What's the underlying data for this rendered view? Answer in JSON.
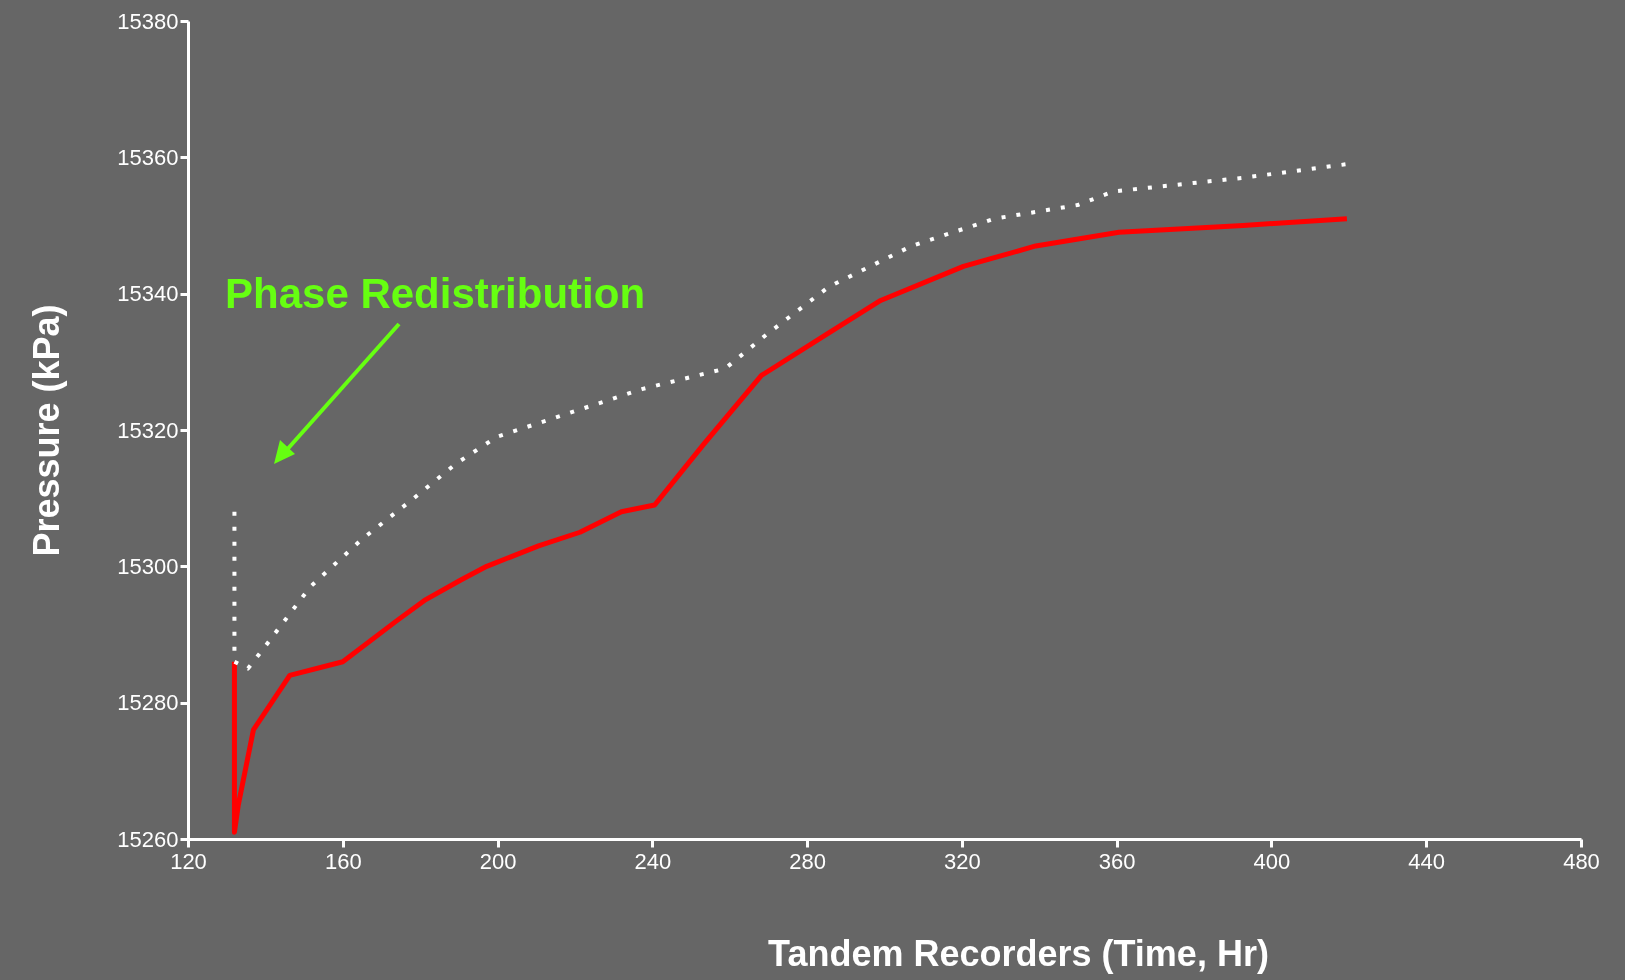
{
  "chart_data": {
    "type": "line",
    "xlabel": "Tandem Recorders (Time, Hr)",
    "ylabel": "Pressure (kPa)",
    "xlim": [
      120,
      480
    ],
    "xticks": [
      120,
      160,
      200,
      240,
      280,
      320,
      360,
      400,
      440,
      480
    ],
    "ylim": [
      15260,
      15380
    ],
    "yticks": [
      15260,
      15280,
      15300,
      15320,
      15340,
      15360,
      15380
    ],
    "grid": false,
    "annotations": [
      "Phase Redistribution"
    ],
    "series": [
      {
        "color": "#ff0000",
        "line_style": "solid",
        "x": [
          132,
          132,
          133,
          136.9,
          146.3,
          160,
          173.9,
          181.1,
          190.5,
          197.2,
          210.6,
          221.3,
          232,
          240.6,
          253.4,
          268.2,
          284.9,
          299,
          320.4,
          339.1,
          360.6,
          392.7,
          419.5
        ],
        "values": [
          15286,
          15261,
          15265,
          15276,
          15284,
          15286,
          15292,
          15295,
          15298,
          15300,
          15303,
          15305,
          15308,
          15309,
          15318,
          15328,
          15334,
          15339,
          15344,
          15347,
          15349,
          15350,
          15351
        ]
      },
      {
        "color": "#ffffff",
        "line_style": "dotted",
        "x": [
          132,
          132,
          135.5,
          139.6,
          151.6,
          165,
          178.4,
          189.1,
          199.8,
          215.9,
          237.3,
          258.8,
          269.5,
          285.6,
          307,
          328.4,
          349.9,
          359.2,
          392.7,
          419.5
        ],
        "values": [
          15308,
          15286,
          15285,
          15288,
          15297,
          15304,
          15310,
          15315,
          15319,
          15322,
          15326,
          15329,
          15334,
          15341,
          15347,
          15351,
          15353,
          15355,
          15357,
          15359
        ]
      }
    ]
  }
}
